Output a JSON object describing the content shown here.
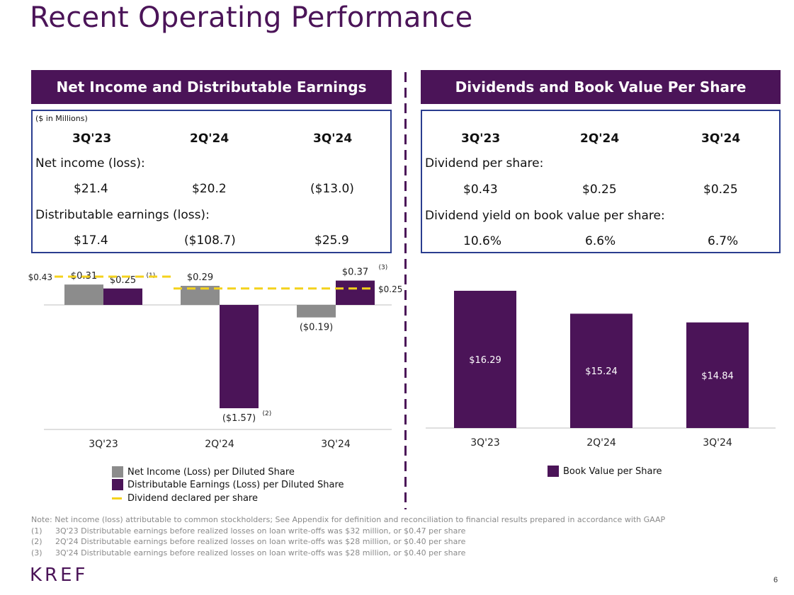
{
  "title": "Recent Operating Performance",
  "left_panel": {
    "header": "Net Income and Distributable Earnings",
    "units": "($ in Millions)",
    "columns": [
      "3Q'23",
      "2Q'24",
      "3Q'24"
    ],
    "row1_label": "Net income (loss):",
    "row1_values": [
      "$21.4",
      "$20.2",
      "($13.0)"
    ],
    "row2_label": "Distributable earnings (loss):",
    "row2_values": [
      "$17.4",
      "($108.7)",
      "$25.9"
    ]
  },
  "right_panel": {
    "header": "Dividends and Book Value Per Share",
    "columns": [
      "3Q'23",
      "2Q'24",
      "3Q'24"
    ],
    "row1_label": "Dividend per share:",
    "row1_values": [
      "$0.43",
      "$0.25",
      "$0.25"
    ],
    "row2_label": "Dividend yield on book value per share:",
    "row2_values": [
      "10.6%",
      "6.6%",
      "6.7%"
    ]
  },
  "chart_data": [
    {
      "type": "bar",
      "categories": [
        "3Q'23",
        "2Q'24",
        "3Q'24"
      ],
      "series": [
        {
          "name": "Net Income (Loss) per Diluted Share",
          "color": "#8c8c8c",
          "values": [
            0.31,
            0.29,
            -0.19
          ],
          "labels": [
            "$0.31",
            "$0.29",
            "($0.19)"
          ],
          "footnotes": [
            "",
            "",
            ""
          ]
        },
        {
          "name": "Distributable Earnings (Loss) per Diluted Share",
          "color": "#4b1458",
          "values": [
            0.25,
            -1.57,
            0.37
          ],
          "labels": [
            "$0.25",
            "($1.57)",
            "$0.37"
          ],
          "footnotes": [
            "(1)",
            "(2)",
            "(3)"
          ]
        }
      ],
      "dividend_line": {
        "name": "Dividend declared per share",
        "color": "#f4d21c",
        "values": [
          0.43,
          0.25
        ],
        "labels": [
          "$0.43",
          "$0.25"
        ]
      },
      "ylim": [
        -1.8,
        0.55
      ]
    },
    {
      "type": "bar",
      "categories": [
        "3Q'23",
        "2Q'24",
        "3Q'24"
      ],
      "series": [
        {
          "name": "Book Value per Share",
          "color": "#4b1458",
          "values": [
            16.29,
            15.24,
            14.84
          ],
          "labels": [
            "$16.29",
            "$15.24",
            "$14.84"
          ]
        }
      ],
      "ylim": [
        10,
        16.9
      ]
    }
  ],
  "notes": {
    "main": "Note: Net income (loss) attributable to common stockholders; See Appendix for definition and reconciliation to financial results prepared in accordance with GAAP",
    "items": [
      {
        "num": "(1)",
        "text": "3Q'23 Distributable earnings before realized losses on loan write-offs was $32 million, or $0.47 per share"
      },
      {
        "num": "(2)",
        "text": "2Q'24 Distributable earnings before realized losses on loan write-offs was $28 million, or $0.40 per share"
      },
      {
        "num": "(3)",
        "text": "3Q'24 Distributable earnings before realized losses on loan write-offs was $28 million, or $0.40 per share"
      }
    ]
  },
  "logo": "KREF",
  "page_number": "6"
}
